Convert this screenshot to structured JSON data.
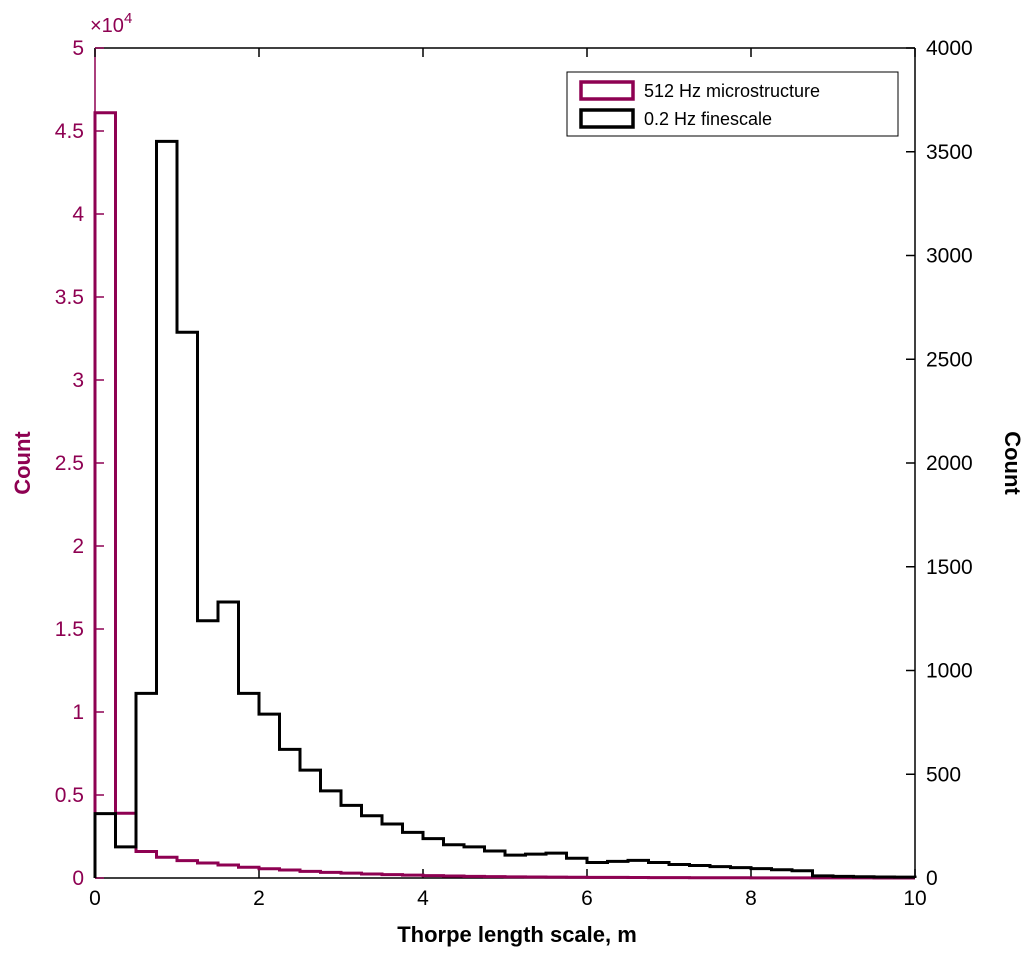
{
  "chart_data": {
    "type": "bar",
    "style": "histogram-stairs",
    "title": "",
    "xlabel": "Thorpe length scale, m",
    "x_axis": {
      "min": 0,
      "max": 10,
      "tick_values": [
        0,
        2,
        4,
        6,
        8,
        10
      ],
      "tick_labels": [
        "0",
        "2",
        "4",
        "6",
        "8",
        "10"
      ]
    },
    "left_axis": {
      "label": "Count",
      "color": "#8E0152",
      "min": 0,
      "max": 50000,
      "exponent": 4,
      "exp_base": "×10",
      "exp_power": "4",
      "tick_values": [
        0,
        5000,
        10000,
        15000,
        20000,
        25000,
        30000,
        35000,
        40000,
        45000,
        50000
      ],
      "tick_labels": [
        "0",
        "0.5",
        "1",
        "1.5",
        "2",
        "2.5",
        "3",
        "3.5",
        "4",
        "4.5",
        "5"
      ]
    },
    "right_axis": {
      "label": "Count",
      "color": "#000000",
      "min": 0,
      "max": 4000,
      "tick_values": [
        0,
        500,
        1000,
        1500,
        2000,
        2500,
        3000,
        3500,
        4000
      ],
      "tick_labels": [
        "0",
        "500",
        "1000",
        "1500",
        "2000",
        "2500",
        "3000",
        "3500",
        "4000"
      ]
    },
    "legend": {
      "position": "northeast",
      "items": [
        {
          "label": "512 Hz microstructure",
          "series": 0
        },
        {
          "label": "0.2 Hz finescale",
          "series": 1
        }
      ]
    },
    "bin_start": 0,
    "bin_width": 0.25,
    "series": [
      {
        "name": "512 Hz microstructure",
        "yaxis": "left",
        "color": "#8E0152",
        "line_width": 3,
        "values": [
          46100,
          3900,
          1600,
          1250,
          1050,
          900,
          780,
          650,
          560,
          480,
          400,
          340,
          290,
          240,
          200,
          170,
          140,
          120,
          100,
          85,
          70,
          60,
          50,
          45,
          40,
          35,
          30,
          25,
          20,
          18,
          15,
          12,
          10,
          8,
          7,
          6,
          5,
          4,
          3,
          2
        ]
      },
      {
        "name": "0.2 Hz finescale",
        "yaxis": "right",
        "color": "#000000",
        "line_width": 3,
        "values": [
          310,
          150,
          890,
          3550,
          2630,
          1240,
          1330,
          890,
          790,
          620,
          520,
          420,
          350,
          300,
          260,
          220,
          190,
          160,
          150,
          130,
          110,
          115,
          120,
          95,
          75,
          80,
          85,
          75,
          65,
          60,
          55,
          50,
          45,
          40,
          35,
          10,
          8,
          6,
          5,
          4
        ]
      }
    ]
  }
}
